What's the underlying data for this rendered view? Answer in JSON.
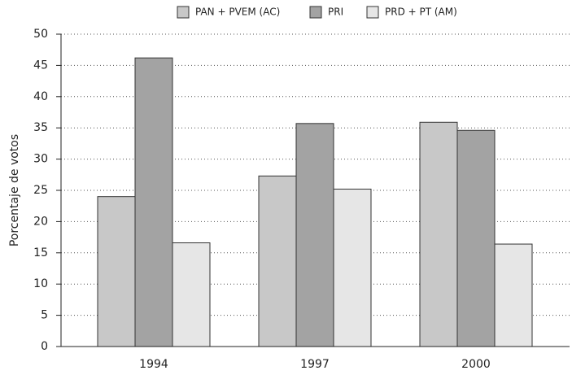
{
  "chart_data": {
    "type": "bar",
    "y_label": "Porcentaje de votos",
    "categories": [
      "1994",
      "1997",
      "2000"
    ],
    "series": [
      {
        "name": "PAN + PVEM (AC)",
        "color": "#c8c8c8",
        "values": [
          24.0,
          27.3,
          35.9
        ]
      },
      {
        "name": "PRI",
        "color": "#a3a3a3",
        "values": [
          46.2,
          35.7,
          34.6
        ]
      },
      {
        "name": "PRD + PT (AM)",
        "color": "#e6e6e6",
        "values": [
          16.6,
          25.2,
          16.4
        ]
      }
    ],
    "ylim": [
      0,
      50
    ],
    "yticks": [
      0,
      5,
      10,
      15,
      20,
      25,
      30,
      35,
      40,
      45,
      50
    ],
    "grid": true,
    "legend": "top"
  }
}
